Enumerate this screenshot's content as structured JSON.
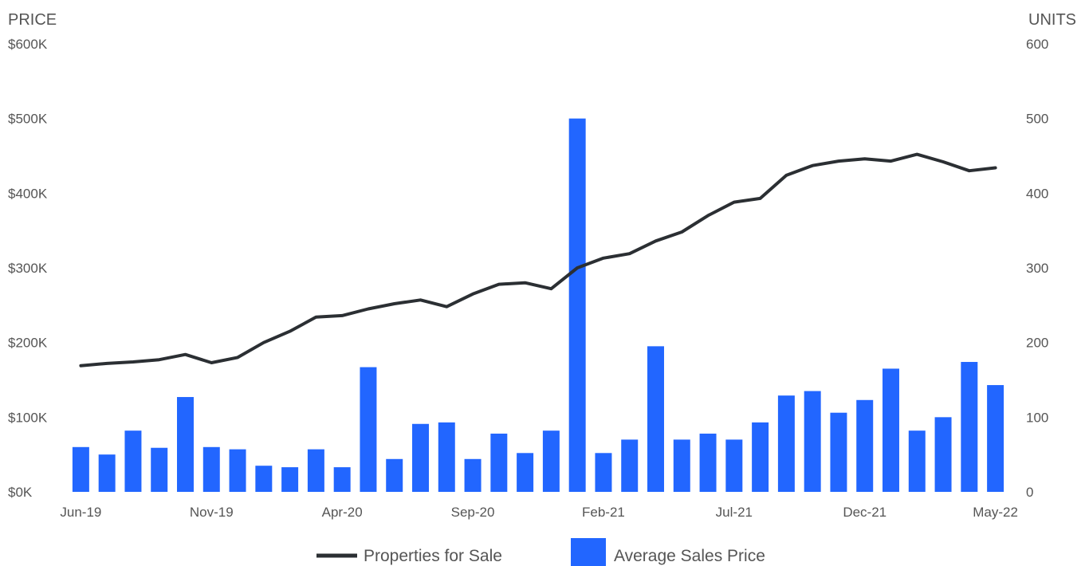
{
  "chart_data": {
    "type": "bar+line",
    "title": "",
    "left_axis": {
      "title": "PRICE",
      "range": [
        0,
        600000
      ],
      "ticks": [
        0,
        100000,
        200000,
        300000,
        400000,
        500000,
        600000
      ],
      "tick_labels": [
        "$0K",
        "$100K",
        "$200K",
        "$300K",
        "$400K",
        "$500K",
        "$600K"
      ]
    },
    "right_axis": {
      "title": "UNITS",
      "range": [
        0,
        600
      ],
      "ticks": [
        0,
        100,
        200,
        300,
        400,
        500,
        600
      ],
      "tick_labels": [
        "0",
        "100",
        "200",
        "300",
        "400",
        "500",
        "600"
      ]
    },
    "categories": [
      "Jun-19",
      "Jul-19",
      "Aug-19",
      "Sep-19",
      "Oct-19",
      "Nov-19",
      "Dec-19",
      "Jan-20",
      "Feb-20",
      "Mar-20",
      "Apr-20",
      "May-20",
      "Jun-20",
      "Jul-20",
      "Aug-20",
      "Sep-20",
      "Oct-20",
      "Nov-20",
      "Dec-20",
      "Jan-21",
      "Feb-21",
      "Mar-21",
      "Apr-21",
      "May-21",
      "Jun-21",
      "Jul-21",
      "Aug-21",
      "Sep-21",
      "Oct-21",
      "Nov-21",
      "Dec-21",
      "Jan-22",
      "Feb-22",
      "Mar-22",
      "Apr-22",
      "May-22"
    ],
    "x_tick_labels": [
      "Jun-19",
      "Nov-19",
      "Apr-20",
      "Sep-20",
      "Feb-21",
      "Jul-21",
      "Dec-21",
      "May-22"
    ],
    "x_tick_indices": [
      0,
      5,
      10,
      15,
      20,
      25,
      30,
      35
    ],
    "series": [
      {
        "name": "Properties for Sale",
        "kind": "line",
        "axis": "right",
        "color": "#2b2f33",
        "values": [
          169,
          172,
          174,
          177,
          184,
          173,
          180,
          200,
          215,
          234,
          236,
          245,
          252,
          257,
          248,
          265,
          278,
          280,
          272,
          300,
          313,
          319,
          336,
          348,
          370,
          388,
          393,
          424,
          437,
          443,
          446,
          443,
          452,
          442,
          430,
          434
        ]
      },
      {
        "name": "Average Sales Price",
        "kind": "bar",
        "axis": "left",
        "color": "#2266ff",
        "values": [
          60000,
          50000,
          82000,
          59000,
          127000,
          60000,
          57000,
          35000,
          33000,
          57000,
          33000,
          167000,
          44000,
          91000,
          93000,
          44000,
          78000,
          52000,
          82000,
          500000,
          52000,
          70000,
          195000,
          70000,
          78000,
          70000,
          93000,
          129000,
          135000,
          106000,
          123000,
          165000,
          82000,
          100000,
          174000,
          143000
        ]
      }
    ],
    "grid": false,
    "legend_position": "bottom-center"
  }
}
